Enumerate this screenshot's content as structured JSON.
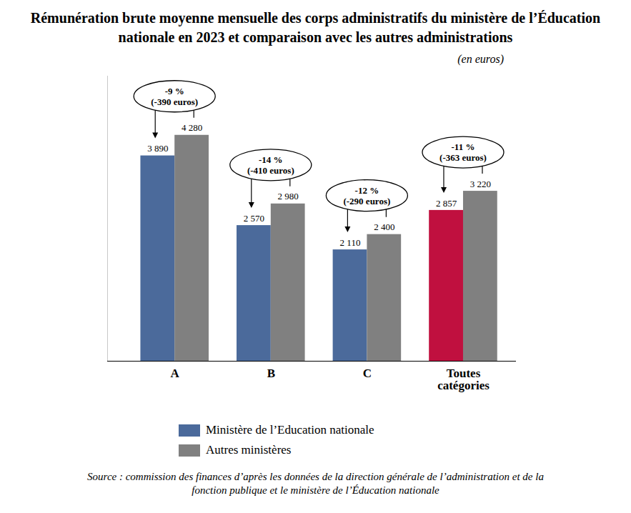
{
  "chart_data": {
    "type": "bar",
    "title": "Rémunération brute moyenne mensuelle des corps administratifs du ministère de l’Éducation nationale en 2023 et comparaison avec les autres administrations",
    "subtitle": "(en euros)",
    "categories": [
      "A",
      "B",
      "C",
      "Toutes catégories"
    ],
    "series": [
      {
        "name": "Ministère de l’Education nationale",
        "color": "#4b6a9b",
        "colors": [
          "#4b6a9b",
          "#4b6a9b",
          "#4b6a9b",
          "#c0103f"
        ],
        "values": [
          3890,
          2570,
          2110,
          2857
        ],
        "value_labels": [
          "3 890",
          "2 570",
          "2 110",
          "2 857"
        ]
      },
      {
        "name": "Autres ministères",
        "color": "#808080",
        "values": [
          4280,
          2980,
          2400,
          3220
        ],
        "value_labels": [
          "4 280",
          "2 980",
          "2 400",
          "3 220"
        ]
      }
    ],
    "annotations": [
      {
        "category": "A",
        "text": [
          "-9 %",
          "(-390 euros)"
        ]
      },
      {
        "category": "B",
        "text": [
          "-14 %",
          "(-410 euros)"
        ]
      },
      {
        "category": "C",
        "text": [
          "-12 %",
          "(-290 euros)"
        ]
      },
      {
        "category": "Toutes catégories",
        "text": [
          "-11 %",
          "(-363 euros)"
        ]
      }
    ],
    "ylim": [
      0,
      5400
    ],
    "yticks": [],
    "tick_labels": "x",
    "data_labels": true,
    "legend": "bottom",
    "source": "Source : commission des finances d’après les données de la direction générale de l’administration et de la fonction publique et le ministère de l’Éducation nationale"
  }
}
